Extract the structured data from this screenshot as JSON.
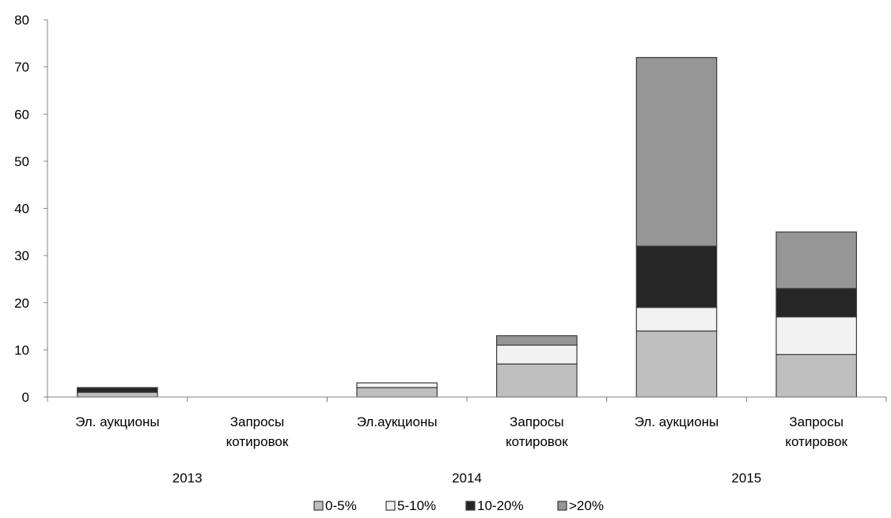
{
  "chart_data": {
    "type": "bar",
    "stacked": true,
    "title": "",
    "xlabel": "",
    "ylabel": "",
    "ylim": [
      0,
      80
    ],
    "yticks": [
      0,
      10,
      20,
      30,
      40,
      50,
      60,
      70,
      80
    ],
    "grid": false,
    "legend_position": "bottom",
    "categories": [
      [
        "Эл. аукционы"
      ],
      [
        "Запросы",
        "котировок"
      ],
      [
        "Эл.аукционы"
      ],
      [
        "Запросы",
        "котировок"
      ],
      [
        "Эл. аукционы"
      ],
      [
        "Запросы",
        "котировок"
      ]
    ],
    "groups": [
      {
        "label": "2013",
        "span": [
          0,
          1
        ]
      },
      {
        "label": "2014",
        "span": [
          2,
          3
        ]
      },
      {
        "label": "2015",
        "span": [
          4,
          5
        ]
      }
    ],
    "series": [
      {
        "name": "0-5%",
        "color": "#bfbfbf",
        "values": [
          1,
          0,
          2,
          7,
          14,
          9
        ]
      },
      {
        "name": "5-10%",
        "color": "#f2f2f2",
        "values": [
          0,
          0,
          1,
          4,
          5,
          8
        ]
      },
      {
        "name": "10-20%",
        "color": "#262626",
        "values": [
          1,
          0,
          0,
          0,
          13,
          6
        ]
      },
      {
        "name": ">20%",
        "color": "#969696",
        "values": [
          0,
          0,
          0,
          2,
          40,
          12
        ]
      }
    ]
  }
}
